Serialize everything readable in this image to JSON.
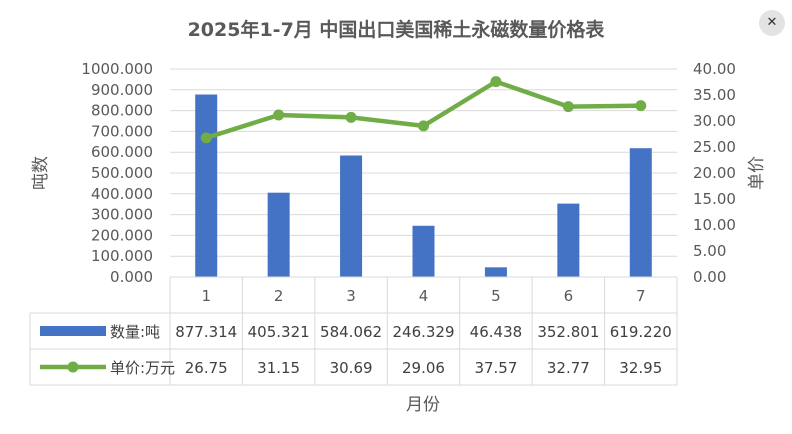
{
  "chart_data": {
    "type": "bar",
    "title": "2025年1-7月  中国出口美国稀土永磁数量价格表",
    "xlabel": "月份",
    "categories": [
      "1",
      "2",
      "3",
      "4",
      "5",
      "6",
      "7"
    ],
    "y_left": {
      "label": "吨数",
      "min": 0,
      "max": 1000,
      "step": 100,
      "tick_decimals": 3
    },
    "y_right": {
      "label": "单价",
      "min": 0,
      "max": 40,
      "step": 5,
      "tick_decimals": 2
    },
    "series": [
      {
        "name": "数量:吨",
        "type": "bar",
        "axis": "left",
        "color": "#4472c4",
        "values": [
          877.314,
          405.321,
          584.062,
          246.329,
          46.438,
          352.801,
          619.22
        ],
        "display": [
          "877.314",
          "405.321",
          "584.062",
          "246.329",
          "46.438",
          "352.801",
          "619.220"
        ]
      },
      {
        "name": "单价:万元",
        "type": "line",
        "axis": "right",
        "color": "#70ad47",
        "values": [
          26.75,
          31.15,
          30.69,
          29.06,
          37.57,
          32.77,
          32.95
        ],
        "display": [
          "26.75",
          "31.15",
          "30.69",
          "29.06",
          "37.57",
          "32.77",
          "32.95"
        ]
      }
    ],
    "grid": true,
    "legend": "data-table"
  },
  "corner_icon": {
    "name": "close-icon",
    "glyph": "✕"
  }
}
